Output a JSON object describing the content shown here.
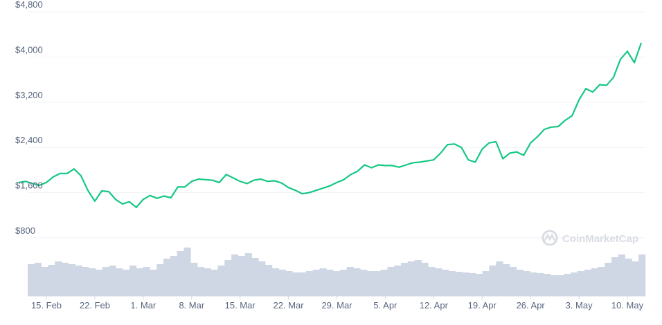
{
  "chart_data": {
    "type": "line",
    "title": "",
    "xlabel": "",
    "ylabel": "",
    "ylim": [
      0,
      4800
    ],
    "y_ticks": [
      "$800",
      "$1,600",
      "$2,400",
      "$3,200",
      "$4,000",
      "$4,800"
    ],
    "y_tick_values": [
      800,
      1600,
      2400,
      3200,
      4000,
      4800
    ],
    "x_ticks": [
      "15. Feb",
      "22. Feb",
      "1. Mar",
      "8. Mar",
      "15. Mar",
      "22. Mar",
      "29. Mar",
      "5. Apr",
      "12. Apr",
      "19. Apr",
      "26. Apr",
      "3. May",
      "10. May"
    ],
    "x_tick_dates": [
      "2021-02-15",
      "2021-02-22",
      "2021-03-01",
      "2021-03-08",
      "2021-03-15",
      "2021-03-22",
      "2021-03-29",
      "2021-04-05",
      "2021-04-12",
      "2021-04-19",
      "2021-04-26",
      "2021-05-03",
      "2021-05-10"
    ],
    "grid": true,
    "legend": "none",
    "series": [
      {
        "color": "#16c784",
        "x": [
          "2021-02-11",
          "2021-02-12",
          "2021-02-13",
          "2021-02-14",
          "2021-02-15",
          "2021-02-16",
          "2021-02-17",
          "2021-02-18",
          "2021-02-19",
          "2021-02-20",
          "2021-02-21",
          "2021-02-22",
          "2021-02-23",
          "2021-02-24",
          "2021-02-25",
          "2021-02-26",
          "2021-02-27",
          "2021-02-28",
          "2021-03-01",
          "2021-03-02",
          "2021-03-03",
          "2021-03-04",
          "2021-03-05",
          "2021-03-06",
          "2021-03-07",
          "2021-03-08",
          "2021-03-09",
          "2021-03-10",
          "2021-03-11",
          "2021-03-12",
          "2021-03-13",
          "2021-03-14",
          "2021-03-15",
          "2021-03-16",
          "2021-03-17",
          "2021-03-18",
          "2021-03-19",
          "2021-03-20",
          "2021-03-21",
          "2021-03-22",
          "2021-03-23",
          "2021-03-24",
          "2021-03-25",
          "2021-03-26",
          "2021-03-27",
          "2021-03-28",
          "2021-03-29",
          "2021-03-30",
          "2021-03-31",
          "2021-04-01",
          "2021-04-02",
          "2021-04-03",
          "2021-04-04",
          "2021-04-05",
          "2021-04-06",
          "2021-04-07",
          "2021-04-08",
          "2021-04-09",
          "2021-04-10",
          "2021-04-11",
          "2021-04-12",
          "2021-04-13",
          "2021-04-14",
          "2021-04-15",
          "2021-04-16",
          "2021-04-17",
          "2021-04-18",
          "2021-04-19",
          "2021-04-20",
          "2021-04-21",
          "2021-04-22",
          "2021-04-23",
          "2021-04-24",
          "2021-04-25",
          "2021-04-26",
          "2021-04-27",
          "2021-04-28",
          "2021-04-29",
          "2021-04-30",
          "2021-05-01",
          "2021-05-02",
          "2021-05-03",
          "2021-05-04",
          "2021-05-05",
          "2021-05-06",
          "2021-05-07",
          "2021-05-08",
          "2021-05-09",
          "2021-05-10",
          "2021-05-11",
          "2021-05-12"
        ],
        "values": [
          1780,
          1800,
          1760,
          1730,
          1780,
          1880,
          1940,
          1940,
          2020,
          1900,
          1640,
          1450,
          1630,
          1620,
          1480,
          1400,
          1440,
          1340,
          1480,
          1550,
          1500,
          1540,
          1510,
          1700,
          1700,
          1800,
          1840,
          1830,
          1820,
          1780,
          1920,
          1860,
          1800,
          1760,
          1820,
          1840,
          1800,
          1810,
          1770,
          1690,
          1640,
          1580,
          1600,
          1640,
          1680,
          1720,
          1780,
          1830,
          1920,
          1980,
          2090,
          2040,
          2090,
          2080,
          2080,
          2050,
          2090,
          2130,
          2140,
          2160,
          2180,
          2300,
          2450,
          2460,
          2400,
          2180,
          2140,
          2370,
          2480,
          2500,
          2200,
          2300,
          2320,
          2260,
          2480,
          2590,
          2720,
          2760,
          2770,
          2880,
          2960,
          3240,
          3440,
          3380,
          3510,
          3500,
          3640,
          3960,
          4100,
          3900,
          4250
        ]
      }
    ],
    "volume": {
      "color": "#cfd6e4",
      "values": [
        46,
        48,
        42,
        45,
        50,
        48,
        46,
        44,
        42,
        40,
        38,
        42,
        44,
        40,
        38,
        44,
        40,
        42,
        38,
        46,
        54,
        58,
        65,
        70,
        48,
        42,
        40,
        38,
        44,
        52,
        60,
        58,
        62,
        55,
        50,
        45,
        40,
        38,
        36,
        34,
        34,
        36,
        38,
        40,
        38,
        36,
        38,
        42,
        40,
        38,
        36,
        36,
        38,
        42,
        44,
        48,
        50,
        52,
        48,
        42,
        40,
        38,
        36,
        35,
        34,
        33,
        32,
        36,
        44,
        50,
        46,
        42,
        38,
        36,
        34,
        33,
        32,
        30,
        30,
        32,
        34,
        36,
        38,
        40,
        42,
        48,
        56,
        60,
        54,
        50,
        60
      ],
      "note_spikes": []
    },
    "watermark": "CoinMarketCap"
  }
}
